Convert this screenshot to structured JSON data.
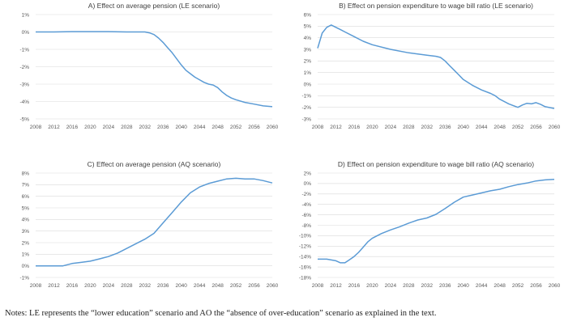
{
  "notes": "Notes: LE represents the “lower education” scenario and AO the “absence of over-education” scenario as explained in the text.",
  "series_color": "#5b9bd5",
  "chart_data": [
    {
      "type": "line",
      "title": "A) Effect on average pension (LE scenario)",
      "x_ticks": [
        "2008",
        "2012",
        "2016",
        "2020",
        "2024",
        "2028",
        "2032",
        "2036",
        "2040",
        "2044",
        "2048",
        "2052",
        "2056",
        "2060"
      ],
      "xlim": [
        2008,
        2060
      ],
      "y_ticks": [
        "1%",
        "0%",
        "-1%",
        "-2%",
        "-3%",
        "-4%",
        "-5%"
      ],
      "ylim": [
        -5,
        1
      ],
      "grid": true,
      "legend": "none",
      "x": [
        2008,
        2012,
        2016,
        2020,
        2024,
        2028,
        2032,
        2033,
        2034,
        2035,
        2036,
        2037,
        2038,
        2039,
        2040,
        2041,
        2042,
        2043,
        2044,
        2045,
        2046,
        2047,
        2048,
        2049,
        2050,
        2051,
        2052,
        2054,
        2056,
        2058,
        2060
      ],
      "values": [
        0.0,
        0.0,
        0.02,
        0.02,
        0.02,
        0.0,
        0.0,
        -0.05,
        -0.15,
        -0.35,
        -0.6,
        -0.9,
        -1.2,
        -1.55,
        -1.9,
        -2.2,
        -2.4,
        -2.6,
        -2.75,
        -2.9,
        -3.0,
        -3.05,
        -3.2,
        -3.45,
        -3.65,
        -3.8,
        -3.9,
        -4.05,
        -4.15,
        -4.25,
        -4.3
      ]
    },
    {
      "type": "line",
      "title": "B) Effect on pension expenditure to wage bill ratio (LE scenario)",
      "x_ticks": [
        "2008",
        "2012",
        "2016",
        "2020",
        "2024",
        "2028",
        "2032",
        "2036",
        "2040",
        "2044",
        "2048",
        "2052",
        "2056",
        "2060"
      ],
      "xlim": [
        2008,
        2060
      ],
      "y_ticks": [
        "6%",
        "5%",
        "4%",
        "3%",
        "2%",
        "1%",
        "0%",
        "-1%",
        "-2%",
        "-3%"
      ],
      "ylim": [
        -3,
        6
      ],
      "grid": true,
      "legend": "none",
      "x": [
        2008,
        2009,
        2010,
        2011,
        2012,
        2013,
        2014,
        2016,
        2018,
        2020,
        2024,
        2028,
        2032,
        2034,
        2035,
        2036,
        2037,
        2038,
        2039,
        2040,
        2042,
        2044,
        2046,
        2047,
        2048,
        2050,
        2052,
        2053,
        2054,
        2055,
        2056,
        2057,
        2058,
        2060
      ],
      "values": [
        3.1,
        4.4,
        4.9,
        5.1,
        4.9,
        4.7,
        4.5,
        4.1,
        3.7,
        3.4,
        3.0,
        2.7,
        2.5,
        2.4,
        2.3,
        2.0,
        1.6,
        1.2,
        0.8,
        0.4,
        -0.1,
        -0.5,
        -0.8,
        -1.0,
        -1.3,
        -1.7,
        -2.0,
        -1.8,
        -1.65,
        -1.7,
        -1.6,
        -1.75,
        -1.95,
        -2.1
      ]
    },
    {
      "type": "line",
      "title": "C) Effect on average pension (AQ scenario)",
      "x_ticks": [
        "2008",
        "2012",
        "2016",
        "2020",
        "2024",
        "2028",
        "2032",
        "2036",
        "2040",
        "2044",
        "2048",
        "2052",
        "2056",
        "2060"
      ],
      "xlim": [
        2008,
        2060
      ],
      "y_ticks": [
        "8%",
        "7%",
        "6%",
        "5%",
        "4%",
        "3%",
        "2%",
        "1%",
        "0%",
        "-1%"
      ],
      "ylim": [
        -1,
        8
      ],
      "grid": true,
      "legend": "none",
      "x": [
        2008,
        2012,
        2014,
        2016,
        2018,
        2020,
        2022,
        2024,
        2026,
        2028,
        2030,
        2032,
        2034,
        2036,
        2038,
        2040,
        2042,
        2044,
        2046,
        2048,
        2050,
        2052,
        2054,
        2056,
        2058,
        2060
      ],
      "values": [
        0.0,
        0.0,
        0.0,
        0.2,
        0.3,
        0.4,
        0.6,
        0.8,
        1.1,
        1.5,
        1.9,
        2.3,
        2.8,
        3.7,
        4.6,
        5.5,
        6.3,
        6.8,
        7.1,
        7.3,
        7.5,
        7.55,
        7.5,
        7.5,
        7.35,
        7.15
      ]
    },
    {
      "type": "line",
      "title": "D) Effect on pension expenditure to wage bill ratio (AQ scenario)",
      "x_ticks": [
        "2008",
        "2012",
        "2016",
        "2020",
        "2024",
        "2028",
        "2032",
        "2036",
        "2040",
        "2044",
        "2048",
        "2052",
        "2056",
        "2060"
      ],
      "xlim": [
        2008,
        2060
      ],
      "y_ticks": [
        "2%",
        "0%",
        "-2%",
        "-4%",
        "-6%",
        "-8%",
        "-10%",
        "-12%",
        "-14%",
        "-16%",
        "-18%"
      ],
      "ylim": [
        -18,
        2
      ],
      "grid": true,
      "legend": "none",
      "x": [
        2008,
        2010,
        2012,
        2013,
        2014,
        2015,
        2016,
        2017,
        2018,
        2019,
        2020,
        2022,
        2024,
        2026,
        2028,
        2030,
        2032,
        2034,
        2036,
        2038,
        2040,
        2042,
        2044,
        2046,
        2048,
        2050,
        2052,
        2054,
        2056,
        2058,
        2060
      ],
      "values": [
        -14.5,
        -14.5,
        -14.8,
        -15.2,
        -15.2,
        -14.6,
        -14.0,
        -13.2,
        -12.2,
        -11.2,
        -10.5,
        -9.6,
        -8.9,
        -8.3,
        -7.6,
        -7.0,
        -6.6,
        -5.9,
        -4.8,
        -3.6,
        -2.6,
        -2.2,
        -1.8,
        -1.4,
        -1.1,
        -0.6,
        -0.2,
        0.1,
        0.5,
        0.7,
        0.8
      ]
    }
  ]
}
